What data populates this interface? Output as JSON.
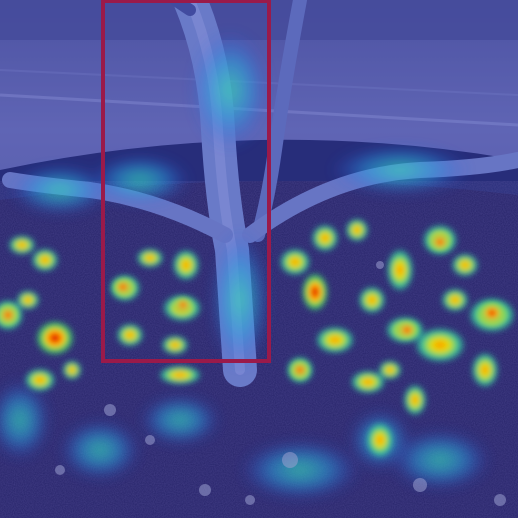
{
  "image": {
    "subject": "plant-stem-in-pot-with-attention-heatmap"
  },
  "annotation": {
    "type": "bounding-box",
    "color": "#9a1a4a"
  },
  "colors": {
    "wall": "#6e74a8",
    "floor": "#7d82b6",
    "pot": "#141a38",
    "soil": "#2a2346",
    "stem": "#7f92c4",
    "tint": "#2a34c8"
  }
}
